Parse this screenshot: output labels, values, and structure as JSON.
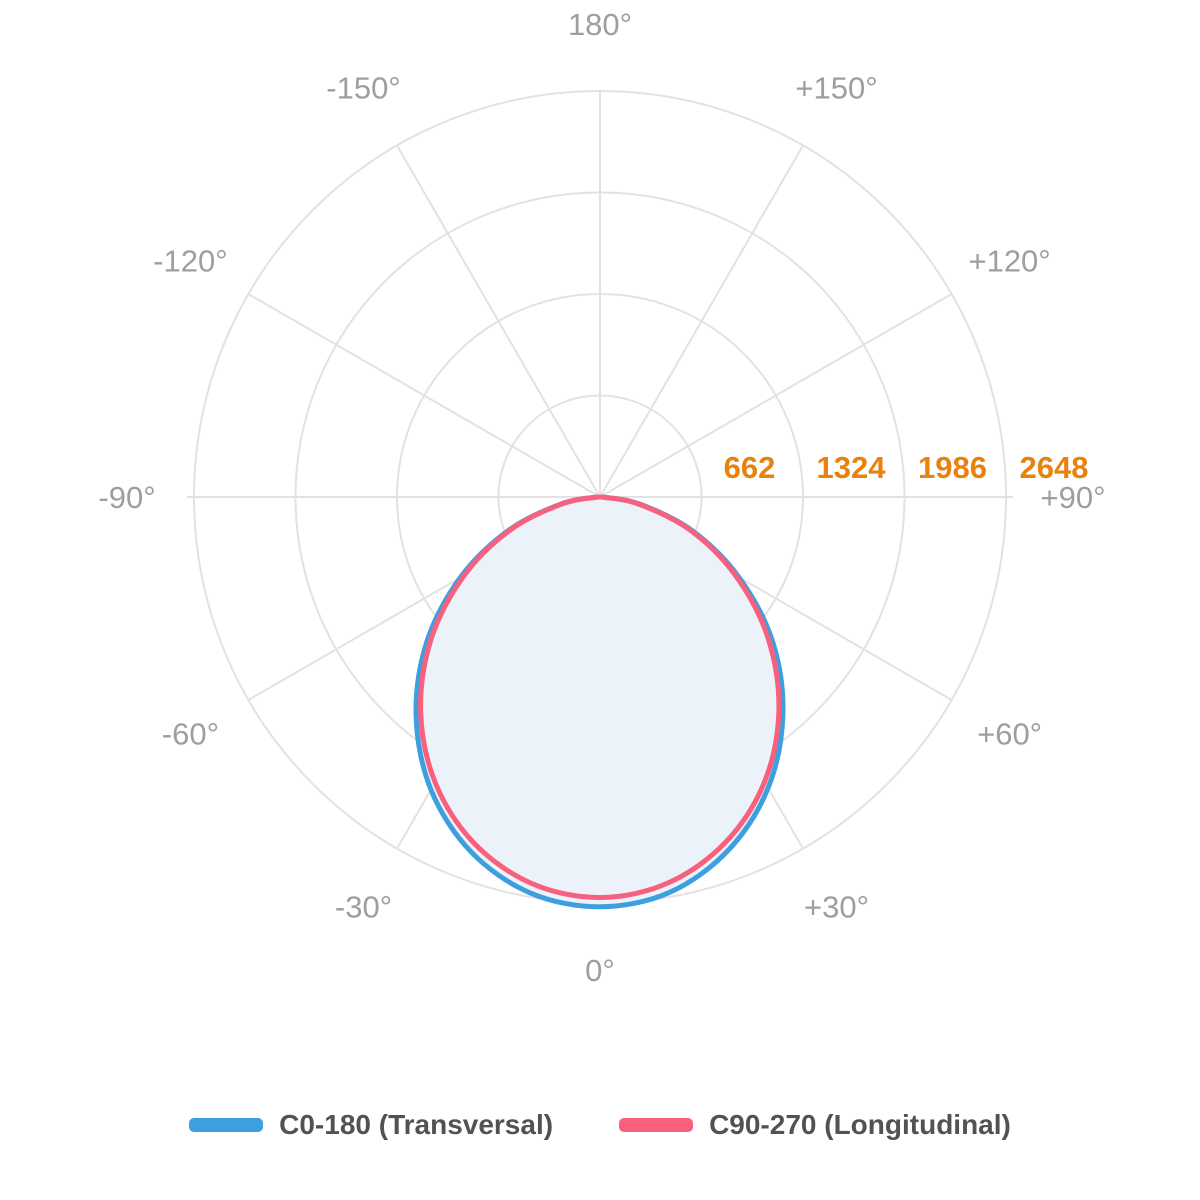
{
  "chart_data": {
    "type": "line",
    "subtype": "polar-photometric-distribution",
    "title": "",
    "angle_unit": "degrees",
    "angle_zero_direction": "down",
    "grid": true,
    "grid_color": "#E2E2E2",
    "background_color": "#FFFFFF",
    "angle_tick_color": "#9E9E9E",
    "radial_tick_color": "#E8820D",
    "radial_max": 2648,
    "radial_ticks": [
      662,
      1324,
      1986,
      2648
    ],
    "angle_ticks": [
      {
        "angle": 0,
        "label": "0°"
      },
      {
        "angle": 30,
        "label": "+30°"
      },
      {
        "angle": 60,
        "label": "+60°"
      },
      {
        "angle": 90,
        "label": "+90°"
      },
      {
        "angle": 120,
        "label": "+120°"
      },
      {
        "angle": 150,
        "label": "+150°"
      },
      {
        "angle": 180,
        "label": "180°"
      },
      {
        "angle": -150,
        "label": "-150°"
      },
      {
        "angle": -120,
        "label": "-120°"
      },
      {
        "angle": -90,
        "label": "-90°"
      },
      {
        "angle": -60,
        "label": "-60°"
      },
      {
        "angle": -30,
        "label": "-30°"
      }
    ],
    "angles": [
      -90,
      -80,
      -70,
      -60,
      -50,
      -40,
      -30,
      -20,
      -10,
      0,
      10,
      20,
      30,
      40,
      50,
      60,
      70,
      80,
      90
    ],
    "series": [
      {
        "name": "C0-180 (Transversal)",
        "color": "#3E9FDE",
        "fill_color": "#EBF2FA",
        "filled": true,
        "values": [
          18,
          255,
          633,
          1052,
          1476,
          1866,
          2205,
          2462,
          2622,
          2673,
          2618,
          2450,
          2192,
          1856,
          1470,
          1046,
          640,
          260,
          16
        ]
      },
      {
        "name": "C90-270 (Longitudinal)",
        "color": "#F8607D",
        "fill_color": null,
        "filled": false,
        "values": [
          10,
          242,
          616,
          1022,
          1436,
          1820,
          2150,
          2402,
          2560,
          2612,
          2556,
          2396,
          2146,
          1815,
          1430,
          1018,
          620,
          246,
          8
        ]
      }
    ],
    "legend_position": "bottom"
  },
  "legend": {
    "items": [
      {
        "label": "C0-180 (Transversal)",
        "color": "#3E9FDE"
      },
      {
        "label": "C90-270 (Longitudinal)",
        "color": "#F8607D"
      }
    ]
  }
}
